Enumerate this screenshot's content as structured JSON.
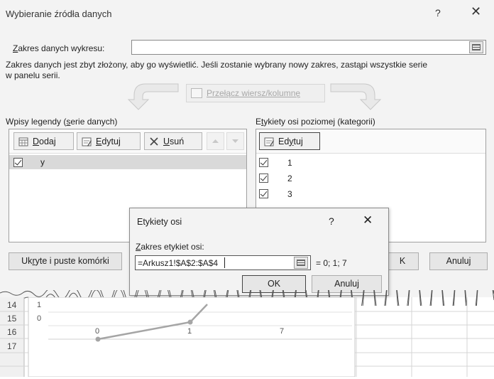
{
  "dialog": {
    "title": "Wybieranie źródła danych",
    "help": "?",
    "close": "✕",
    "range_label_underlined": "Z",
    "range_label_rest": "akres danych wykresu:",
    "range_value": "",
    "message_line1": "Zakres danych jest zbyt złożony, aby go wyświetlić. Jeśli zostanie wybrany nowy zakres, zastąpi wszystkie serie",
    "message_line2": "w panelu serii.",
    "switch_button": "Przełącz wiersz/kolumnę",
    "legend": {
      "label_pre": "Wpisy legendy (",
      "label_u": "s",
      "label_post": "erie danych)",
      "add_u": "D",
      "add_rest": "odaj",
      "edit_u": "E",
      "edit_rest": "dytuj",
      "remove_u": "U",
      "remove_rest": "suń",
      "items": [
        {
          "label": "y",
          "checked": true
        }
      ]
    },
    "axis": {
      "label_pre": "E",
      "label_u": "t",
      "label_post": "ykiety osi poziomej (kategorii)",
      "edit_pre": "Ed",
      "edit_u": "y",
      "edit_post": "tuj",
      "items": [
        {
          "label": "1",
          "checked": true
        },
        {
          "label": "2",
          "checked": true
        },
        {
          "label": "3",
          "checked": true
        }
      ]
    },
    "hidden_cells_pre": "Uk",
    "hidden_cells_u": "r",
    "hidden_cells_post": "yte i puste komórki",
    "ok_partial": "K",
    "cancel": "Anuluj"
  },
  "axis_dialog": {
    "title": "Etykiety osi",
    "help": "?",
    "close": "✕",
    "range_label_u": "Z",
    "range_label_rest": "akres etykiet osi:",
    "range_value": "=Arkusz1!$A$2:$A$4",
    "preview": "= 0; 1; 7",
    "ok": "OK",
    "cancel": "Anuluj"
  },
  "sheet": {
    "row_numbers": [
      "14",
      "15",
      "16",
      "17"
    ],
    "y_ticks": [
      "1",
      "0"
    ],
    "x_ticks": [
      "0",
      "1",
      "7"
    ],
    "series_color": "#a5a5a5"
  }
}
